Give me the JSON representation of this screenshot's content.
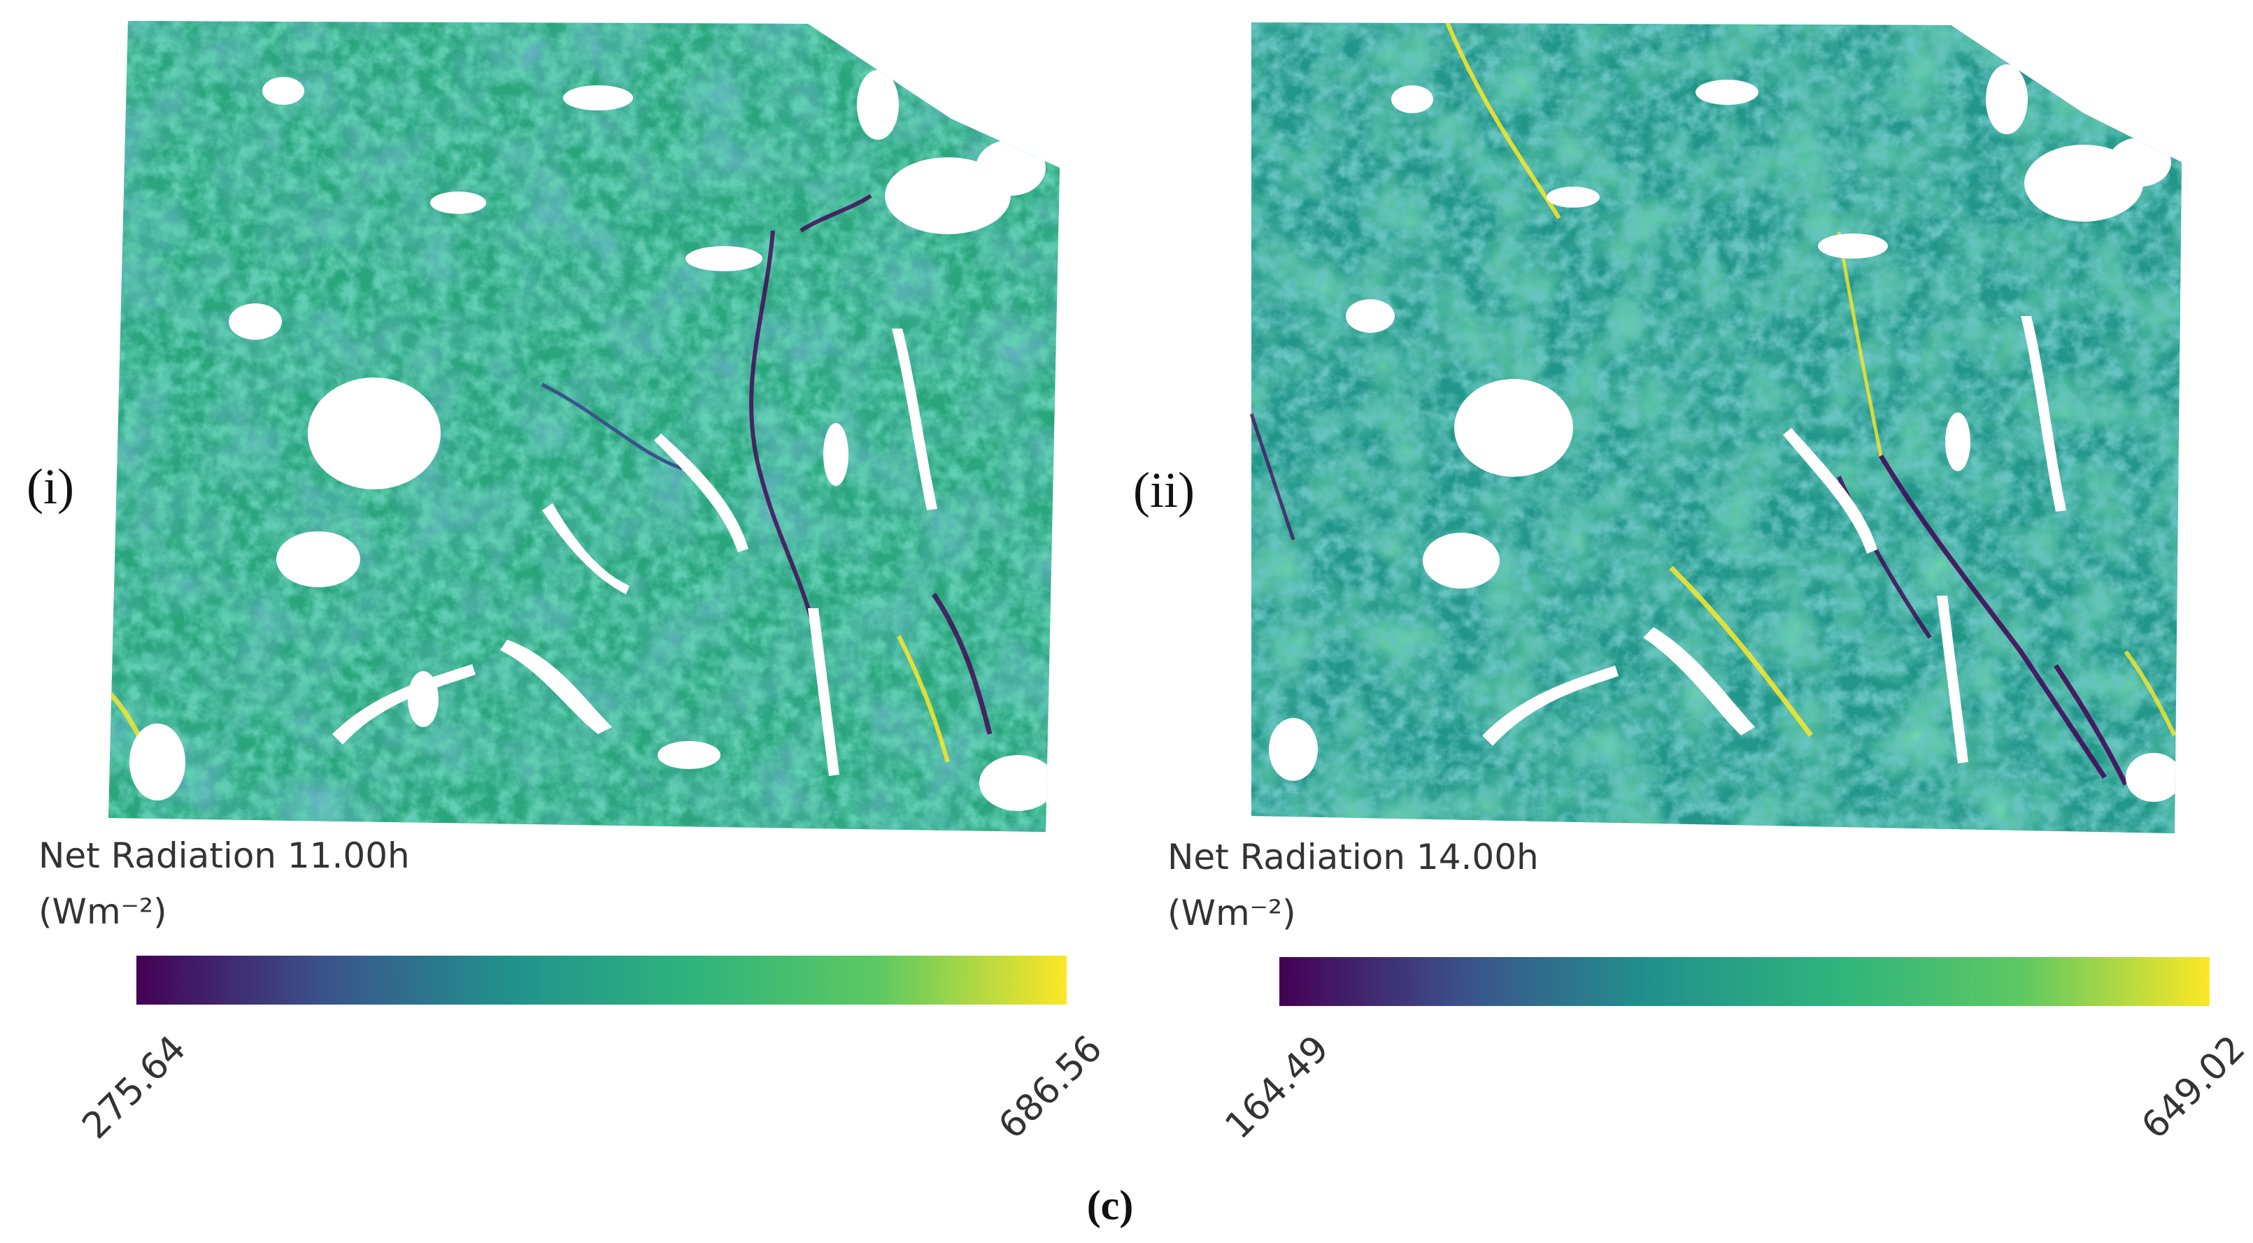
{
  "caption": "(c)",
  "panels": [
    {
      "label": "(i)",
      "title": "Net Radiation 11.00h",
      "unit": "(Wm⁻²)",
      "min": "275.64",
      "max": "686.56"
    },
    {
      "label": "(ii)",
      "title": "Net Radiation 14.00h",
      "unit": "(Wm⁻²)",
      "min": "164.49",
      "max": "649.02"
    }
  ],
  "colormap": [
    "#440154",
    "#3b528b",
    "#21918c",
    "#2fb47c",
    "#5ec962",
    "#fde725"
  ],
  "icons": {
    "map": "raster-map-icon"
  }
}
